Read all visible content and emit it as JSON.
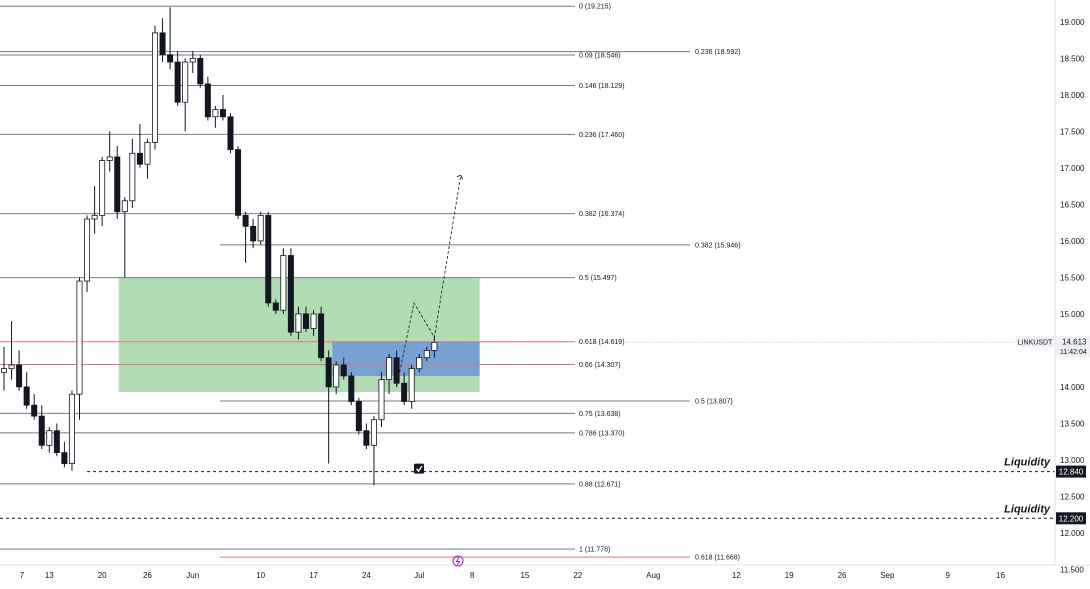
{
  "chart_data": {
    "type": "candlestick",
    "symbol_label": "LINKUSDT",
    "last_price": "14.613",
    "countdown": "11:42:04",
    "ylim": [
      11.3,
      19.3
    ],
    "price_ticks": [
      "19.000",
      "18.500",
      "18.000",
      "17.500",
      "17.000",
      "16.500",
      "16.000",
      "15.500",
      "15.000",
      "14.500",
      "14.000",
      "13.500",
      "13.000",
      "12.500",
      "12.000",
      "11.500"
    ],
    "date_ticks": [
      {
        "label": "7",
        "x": 0
      },
      {
        "label": "13",
        "x": 6
      },
      {
        "label": "20",
        "x": 13
      },
      {
        "label": "26",
        "x": 19
      },
      {
        "label": "Jun",
        "x": 25
      },
      {
        "label": "10",
        "x": 34
      },
      {
        "label": "17",
        "x": 41
      },
      {
        "label": "24",
        "x": 48
      },
      {
        "label": "Jul",
        "x": 55
      },
      {
        "label": "8",
        "x": 62
      },
      {
        "label": "15",
        "x": 69
      },
      {
        "label": "22",
        "x": 76
      },
      {
        "label": "Aug",
        "x": 86
      },
      {
        "label": "12",
        "x": 97
      },
      {
        "label": "19",
        "x": 104
      },
      {
        "label": "26",
        "x": 111
      },
      {
        "label": "Sep",
        "x": 117
      },
      {
        "label": "9",
        "x": 125
      },
      {
        "label": "16",
        "x": 132
      }
    ],
    "fib_levels_left": [
      {
        "label": "0 (19.215)",
        "price": 19.215,
        "color": "#787b86"
      },
      {
        "label": "0.09 (18.546)",
        "price": 18.546,
        "color": "#787b86"
      },
      {
        "label": "0.146 (18.129)",
        "price": 18.129,
        "color": "#787b86"
      },
      {
        "label": "0.236 (17.460)",
        "price": 17.46,
        "color": "#787b86"
      },
      {
        "label": "0.382 (16.374)",
        "price": 16.374,
        "color": "#787b86"
      },
      {
        "label": "0.5 (15.497)",
        "price": 15.497,
        "color": "#787b86"
      },
      {
        "label": "0.618 (14.619)",
        "price": 14.619,
        "color": "#e57373"
      },
      {
        "label": "0.66 (14.307)",
        "price": 14.307,
        "color": "#e57373"
      },
      {
        "label": "0.75 (13.638)",
        "price": 13.638,
        "color": "#787b86"
      },
      {
        "label": "0.786 (13.370)",
        "price": 13.37,
        "color": "#787b86"
      },
      {
        "label": "0.88 (12.671)",
        "price": 12.671,
        "color": "#787b86"
      },
      {
        "label": "1 (11.778)",
        "price": 11.778,
        "color": "#787b86"
      }
    ],
    "fib_levels_right": [
      {
        "label": "0.236 (18.592)",
        "price": 18.592,
        "color": "#787b86"
      },
      {
        "label": "0.382 (15.946)",
        "price": 15.946,
        "color": "#787b86"
      },
      {
        "label": "0.5 (13.807)",
        "price": 13.807,
        "color": "#787b86"
      },
      {
        "label": "0.618 (11.668)",
        "price": 11.668,
        "color": "#e57373"
      }
    ],
    "liquidity_levels": [
      {
        "label": "Liquidity",
        "price": 12.84,
        "price_label": "12.840"
      },
      {
        "label": "Liquidity",
        "price": 12.2,
        "price_label": "12.200"
      }
    ],
    "zones": [
      {
        "from_x": 15.2,
        "to_x": 63,
        "top": 15.497,
        "bottom": 13.93,
        "color": "#a5d6a7"
      },
      {
        "from_x": 43.5,
        "to_x": 63,
        "top": 14.62,
        "bottom": 14.15,
        "color": "#6f9ad6"
      }
    ],
    "projection_path": [
      [
        52,
        14.0
      ],
      [
        54.3,
        15.15
      ],
      [
        57,
        14.68
      ],
      [
        60.5,
        16.9
      ]
    ],
    "candles": [
      {
        "o": 14.2,
        "h": 14.55,
        "l": 13.95,
        "c": 14.25
      },
      {
        "o": 14.25,
        "h": 14.9,
        "l": 14.1,
        "c": 14.3
      },
      {
        "o": 14.3,
        "h": 14.5,
        "l": 13.95,
        "c": 14.0
      },
      {
        "o": 14.0,
        "h": 14.2,
        "l": 13.7,
        "c": 13.75
      },
      {
        "o": 13.75,
        "h": 13.9,
        "l": 13.55,
        "c": 13.6
      },
      {
        "o": 13.6,
        "h": 13.75,
        "l": 13.15,
        "c": 13.2
      },
      {
        "o": 13.2,
        "h": 13.45,
        "l": 13.1,
        "c": 13.4
      },
      {
        "o": 13.4,
        "h": 13.5,
        "l": 13.05,
        "c": 13.1
      },
      {
        "o": 13.1,
        "h": 13.25,
        "l": 12.9,
        "c": 12.95
      },
      {
        "o": 12.95,
        "h": 13.95,
        "l": 12.85,
        "c": 13.9
      },
      {
        "o": 13.9,
        "h": 15.5,
        "l": 13.55,
        "c": 15.45
      },
      {
        "o": 15.45,
        "h": 16.35,
        "l": 15.3,
        "c": 16.3
      },
      {
        "o": 16.3,
        "h": 16.75,
        "l": 16.1,
        "c": 16.35
      },
      {
        "o": 16.35,
        "h": 17.15,
        "l": 16.2,
        "c": 17.1
      },
      {
        "o": 17.1,
        "h": 17.5,
        "l": 16.95,
        "c": 17.15
      },
      {
        "o": 17.15,
        "h": 17.3,
        "l": 16.3,
        "c": 16.4
      },
      {
        "o": 16.4,
        "h": 16.6,
        "l": 15.5,
        "c": 16.55
      },
      {
        "o": 16.55,
        "h": 17.4,
        "l": 16.45,
        "c": 17.2
      },
      {
        "o": 17.2,
        "h": 17.6,
        "l": 17.0,
        "c": 17.05
      },
      {
        "o": 17.05,
        "h": 17.4,
        "l": 16.85,
        "c": 17.35
      },
      {
        "o": 17.35,
        "h": 18.95,
        "l": 17.25,
        "c": 18.85
      },
      {
        "o": 18.85,
        "h": 19.05,
        "l": 18.45,
        "c": 18.55
      },
      {
        "o": 18.55,
        "h": 19.2,
        "l": 18.35,
        "c": 18.45
      },
      {
        "o": 18.45,
        "h": 18.6,
        "l": 17.85,
        "c": 17.9
      },
      {
        "o": 17.9,
        "h": 18.5,
        "l": 17.5,
        "c": 18.45
      },
      {
        "o": 18.45,
        "h": 18.6,
        "l": 18.3,
        "c": 18.5
      },
      {
        "o": 18.5,
        "h": 18.55,
        "l": 18.1,
        "c": 18.15
      },
      {
        "o": 18.15,
        "h": 18.25,
        "l": 17.65,
        "c": 17.7
      },
      {
        "o": 17.7,
        "h": 17.85,
        "l": 17.55,
        "c": 17.8
      },
      {
        "o": 17.8,
        "h": 18.0,
        "l": 17.65,
        "c": 17.7
      },
      {
        "o": 17.7,
        "h": 17.75,
        "l": 17.2,
        "c": 17.25
      },
      {
        "o": 17.25,
        "h": 17.3,
        "l": 16.3,
        "c": 16.35
      },
      {
        "o": 16.35,
        "h": 16.4,
        "l": 15.7,
        "c": 16.2
      },
      {
        "o": 16.2,
        "h": 16.3,
        "l": 15.9,
        "c": 16.0
      },
      {
        "o": 16.0,
        "h": 16.4,
        "l": 15.95,
        "c": 16.35
      },
      {
        "o": 16.35,
        "h": 16.4,
        "l": 15.1,
        "c": 15.15
      },
      {
        "o": 15.15,
        "h": 15.2,
        "l": 15.0,
        "c": 15.05
      },
      {
        "o": 15.05,
        "h": 15.9,
        "l": 15.0,
        "c": 15.8
      },
      {
        "o": 15.8,
        "h": 15.9,
        "l": 14.7,
        "c": 14.75
      },
      {
        "o": 14.75,
        "h": 15.1,
        "l": 14.65,
        "c": 15.0
      },
      {
        "o": 15.0,
        "h": 15.1,
        "l": 14.75,
        "c": 14.8
      },
      {
        "o": 14.8,
        "h": 15.05,
        "l": 14.7,
        "c": 15.0
      },
      {
        "o": 15.0,
        "h": 15.1,
        "l": 14.35,
        "c": 14.4
      },
      {
        "o": 14.4,
        "h": 14.5,
        "l": 12.95,
        "c": 14.0
      },
      {
        "o": 14.0,
        "h": 14.35,
        "l": 13.9,
        "c": 14.3
      },
      {
        "o": 14.3,
        "h": 14.4,
        "l": 14.1,
        "c": 14.15
      },
      {
        "o": 14.15,
        "h": 14.2,
        "l": 13.75,
        "c": 13.8
      },
      {
        "o": 13.8,
        "h": 13.85,
        "l": 13.35,
        "c": 13.4
      },
      {
        "o": 13.4,
        "h": 13.5,
        "l": 13.15,
        "c": 13.2
      },
      {
        "o": 13.2,
        "h": 13.6,
        "l": 12.65,
        "c": 13.55
      },
      {
        "o": 13.55,
        "h": 14.2,
        "l": 13.45,
        "c": 14.1
      },
      {
        "o": 14.1,
        "h": 14.45,
        "l": 13.9,
        "c": 14.4
      },
      {
        "o": 14.4,
        "h": 14.5,
        "l": 14.0,
        "c": 14.05
      },
      {
        "o": 14.05,
        "h": 14.2,
        "l": 13.75,
        "c": 13.8
      },
      {
        "o": 13.8,
        "h": 14.3,
        "l": 13.7,
        "c": 14.25
      },
      {
        "o": 14.25,
        "h": 14.45,
        "l": 14.2,
        "c": 14.4
      },
      {
        "o": 14.4,
        "h": 14.55,
        "l": 14.35,
        "c": 14.5
      },
      {
        "o": 14.5,
        "h": 14.7,
        "l": 14.4,
        "c": 14.61
      }
    ]
  }
}
